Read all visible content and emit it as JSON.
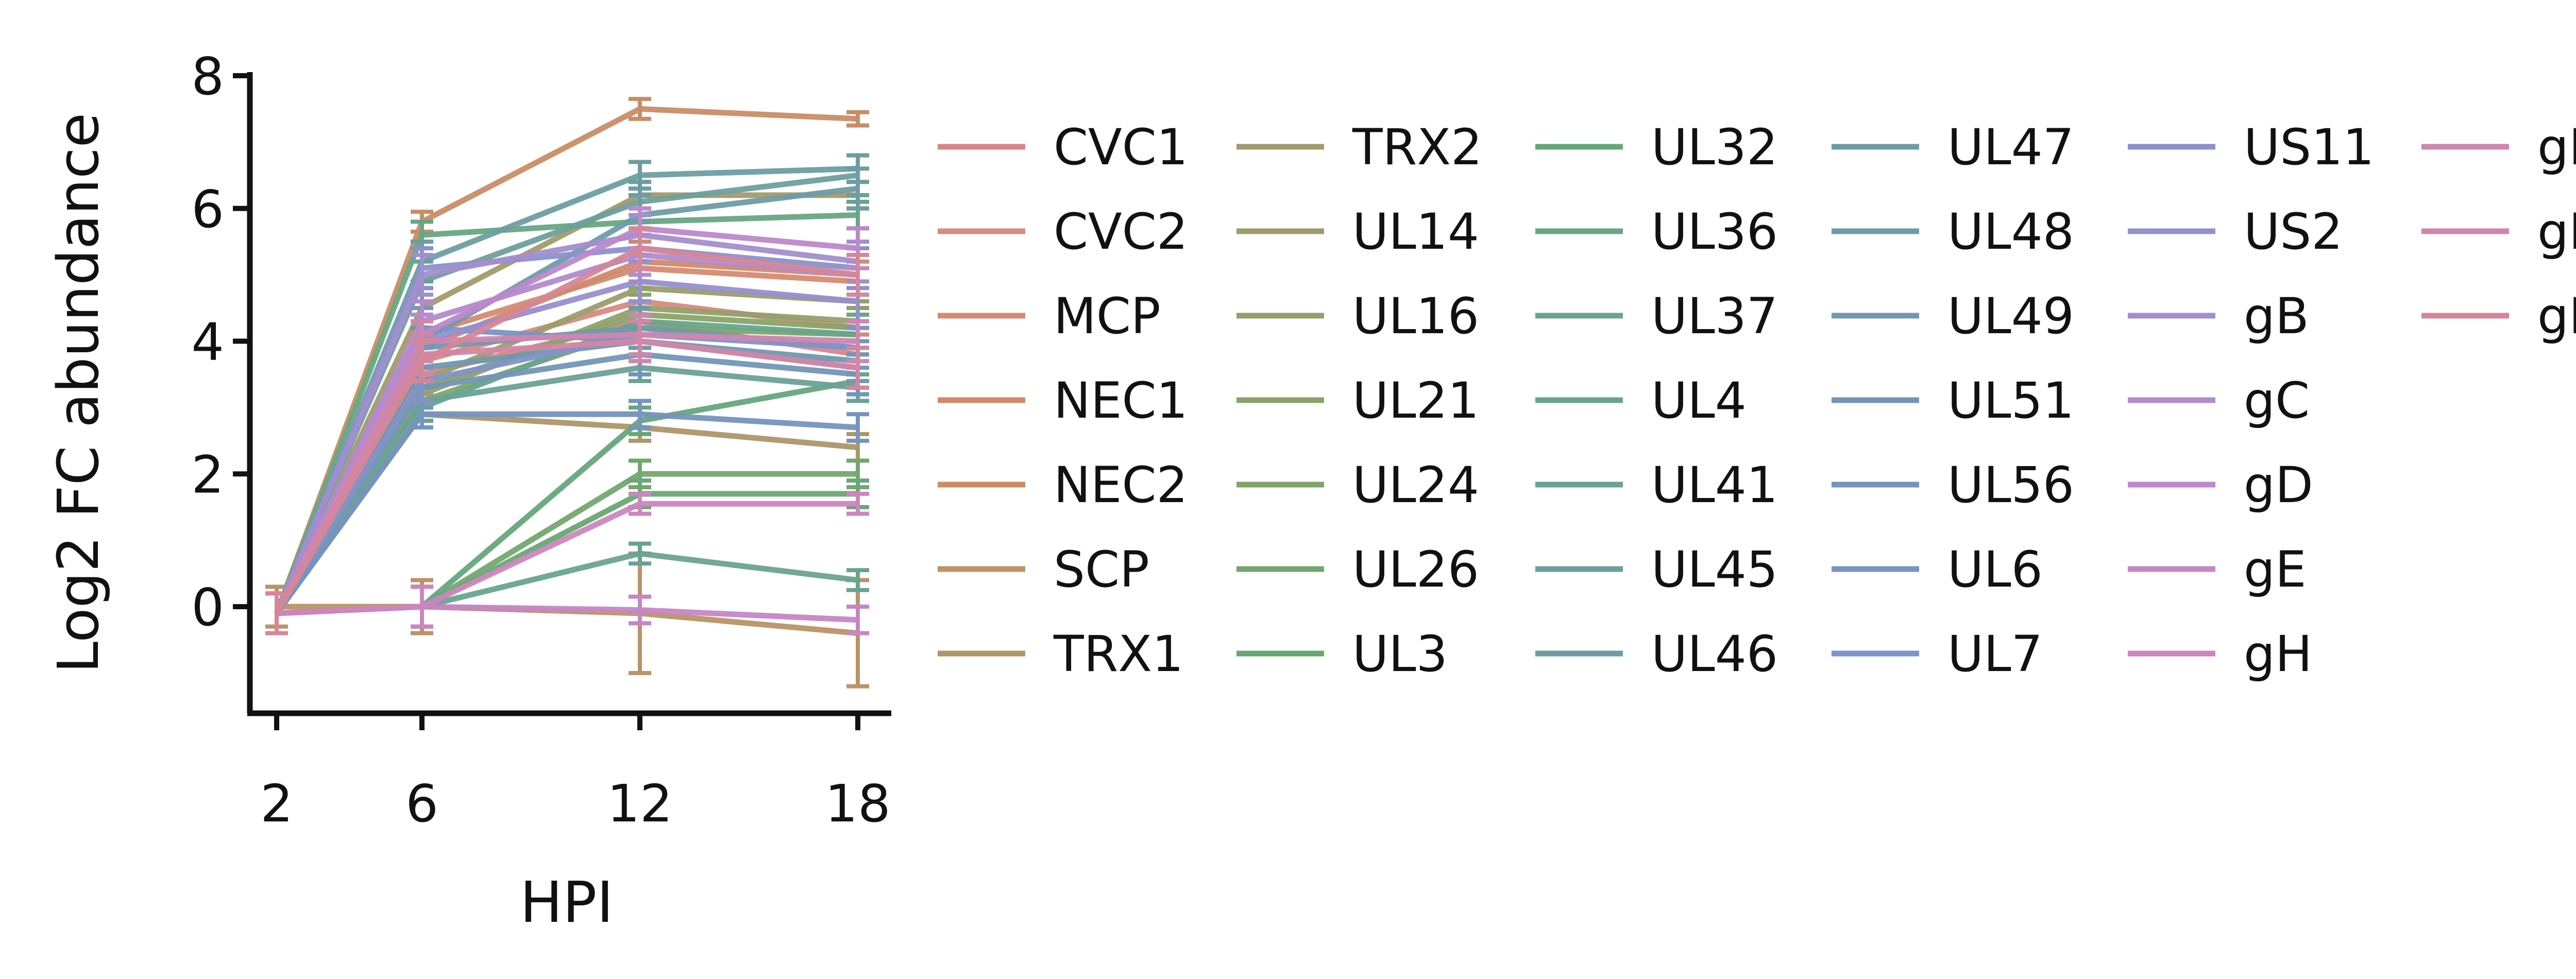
{
  "chart_data": {
    "type": "line",
    "title": "",
    "xlabel": "HPI",
    "ylabel": "Log2 FC abundance",
    "x": [
      2,
      6,
      12,
      18
    ],
    "xticks": [
      2,
      6,
      12,
      18
    ],
    "ylim": [
      -1.6,
      8.1
    ],
    "yticks": [
      0,
      2,
      4,
      6,
      8
    ],
    "grid": false,
    "legend_placement": "right",
    "series": [
      {
        "name": "CVC1",
        "color": "#d98587",
        "values": [
          -0.1,
          3.5,
          4.3,
          3.8
        ],
        "errors": [
          0.3,
          0.3,
          0.3,
          0.3
        ]
      },
      {
        "name": "CVC2",
        "color": "#d78a80",
        "values": [
          -0.1,
          3.7,
          4.6,
          4.2
        ],
        "errors": [
          0.3,
          0.3,
          0.3,
          0.3
        ]
      },
      {
        "name": "MCP",
        "color": "#d58b72",
        "values": [
          -0.1,
          4.1,
          5.1,
          4.9
        ],
        "errors": [
          0.3,
          0.3,
          0.3,
          0.3
        ]
      },
      {
        "name": "NEC1",
        "color": "#d18a6a",
        "values": [
          -0.1,
          3.9,
          5.2,
          5.0
        ],
        "errors": [
          0.3,
          0.3,
          0.3,
          0.3
        ]
      },
      {
        "name": "NEC2",
        "color": "#c98d66",
        "values": [
          -0.1,
          5.8,
          7.5,
          7.35
        ],
        "errors": [
          0.3,
          0.15,
          0.15,
          0.1
        ]
      },
      {
        "name": "SCP",
        "color": "#bb9366",
        "values": [
          0.0,
          0.0,
          -0.1,
          -0.4
        ],
        "errors": [
          0.3,
          0.4,
          0.9,
          0.8
        ]
      },
      {
        "name": "TRX1",
        "color": "#ae9668",
        "values": [
          -0.1,
          2.9,
          2.7,
          2.4
        ],
        "errors": [
          0.3,
          0.2,
          0.2,
          0.2
        ]
      },
      {
        "name": "TRX2",
        "color": "#a39a6b",
        "values": [
          -0.1,
          4.5,
          6.2,
          6.2
        ],
        "errors": [
          0.3,
          0.3,
          0.2,
          0.2
        ]
      },
      {
        "name": "UL14",
        "color": "#9c9d6b",
        "values": [
          -0.1,
          3.4,
          4.8,
          4.6
        ],
        "errors": [
          0.3,
          0.3,
          0.3,
          0.3
        ]
      },
      {
        "name": "UL16",
        "color": "#94a06a",
        "values": [
          -0.1,
          3.2,
          4.5,
          4.3
        ],
        "errors": [
          0.3,
          0.3,
          0.3,
          0.3
        ]
      },
      {
        "name": "UL21",
        "color": "#8aa369",
        "values": [
          -0.1,
          3.3,
          4.4,
          4.2
        ],
        "errors": [
          0.3,
          0.3,
          0.3,
          0.3
        ]
      },
      {
        "name": "UL24",
        "color": "#7fa56b",
        "values": [
          -0.1,
          3.1,
          4.2,
          4.1
        ],
        "errors": [
          0.3,
          0.3,
          0.3,
          0.3
        ]
      },
      {
        "name": "UL26",
        "color": "#74a66f",
        "values": [
          -0.1,
          0.0,
          2.0,
          2.0
        ],
        "errors": [
          0.3,
          0.3,
          0.2,
          0.2
        ]
      },
      {
        "name": "UL3",
        "color": "#69a774",
        "values": [
          -0.1,
          0.0,
          1.7,
          1.7
        ],
        "errors": [
          0.3,
          0.3,
          0.2,
          0.2
        ]
      },
      {
        "name": "UL32",
        "color": "#65a77b",
        "values": [
          -0.1,
          0.0,
          2.8,
          3.4
        ],
        "errors": [
          0.3,
          0.3,
          0.2,
          0.2
        ]
      },
      {
        "name": "UL36",
        "color": "#67a683",
        "values": [
          -0.1,
          5.6,
          5.8,
          5.9
        ],
        "errors": [
          0.3,
          0.2,
          0.2,
          0.2
        ]
      },
      {
        "name": "UL37",
        "color": "#68a58a",
        "values": [
          -0.1,
          3.0,
          4.3,
          4.1
        ],
        "errors": [
          0.3,
          0.3,
          0.3,
          0.3
        ]
      },
      {
        "name": "UL4",
        "color": "#69a390",
        "values": [
          -0.1,
          0.0,
          0.8,
          0.4
        ],
        "errors": [
          0.3,
          0.3,
          0.15,
          0.15
        ]
      },
      {
        "name": "UL41",
        "color": "#6aa296",
        "values": [
          -0.1,
          3.1,
          3.6,
          3.3
        ],
        "errors": [
          0.3,
          0.3,
          0.2,
          0.2
        ]
      },
      {
        "name": "UL45",
        "color": "#6ba09c",
        "values": [
          -0.1,
          4.9,
          6.1,
          6.5
        ],
        "errors": [
          0.3,
          0.3,
          0.3,
          0.3
        ]
      },
      {
        "name": "UL46",
        "color": "#6c9ea1",
        "values": [
          -0.1,
          5.2,
          6.5,
          6.6
        ],
        "errors": [
          0.3,
          0.3,
          0.2,
          0.2
        ]
      },
      {
        "name": "UL47",
        "color": "#6d9ca6",
        "values": [
          -0.1,
          4.0,
          5.9,
          6.3
        ],
        "errors": [
          0.3,
          0.3,
          0.3,
          0.3
        ]
      },
      {
        "name": "UL48",
        "color": "#6e9aab",
        "values": [
          -0.1,
          3.9,
          4.2,
          3.9
        ],
        "errors": [
          0.3,
          0.3,
          0.3,
          0.3
        ]
      },
      {
        "name": "UL49",
        "color": "#7098b1",
        "values": [
          -0.1,
          3.6,
          4.0,
          3.7
        ],
        "errors": [
          0.3,
          0.3,
          0.3,
          0.3
        ]
      },
      {
        "name": "UL51",
        "color": "#7396b7",
        "values": [
          -0.1,
          3.3,
          3.8,
          3.5
        ],
        "errors": [
          0.3,
          0.3,
          0.3,
          0.3
        ]
      },
      {
        "name": "UL56",
        "color": "#7694bd",
        "values": [
          -0.1,
          2.9,
          2.9,
          2.7
        ],
        "errors": [
          0.3,
          0.2,
          0.2,
          0.2
        ]
      },
      {
        "name": "UL6",
        "color": "#7b93c3",
        "values": [
          -0.1,
          4.2,
          4.0,
          3.6
        ],
        "errors": [
          0.3,
          0.3,
          0.3,
          0.3
        ]
      },
      {
        "name": "UL7",
        "color": "#8292c8",
        "values": [
          -0.1,
          3.4,
          4.1,
          3.9
        ],
        "errors": [
          0.3,
          0.3,
          0.3,
          0.3
        ]
      },
      {
        "name": "US11",
        "color": "#8b91cb",
        "values": [
          -0.1,
          5.1,
          5.4,
          5.1
        ],
        "errors": [
          0.3,
          0.3,
          0.3,
          0.3
        ]
      },
      {
        "name": "US2",
        "color": "#9690cd",
        "values": [
          -0.1,
          4.0,
          4.9,
          4.6
        ],
        "errors": [
          0.3,
          0.3,
          0.3,
          0.3
        ]
      },
      {
        "name": "gB",
        "color": "#a38ecf",
        "values": [
          -0.1,
          5.0,
          5.6,
          5.2
        ],
        "errors": [
          0.3,
          0.3,
          0.3,
          0.3
        ]
      },
      {
        "name": "gC",
        "color": "#b18bce",
        "values": [
          -0.1,
          4.3,
          5.3,
          5.0
        ],
        "errors": [
          0.3,
          0.3,
          0.3,
          0.3
        ]
      },
      {
        "name": "gD",
        "color": "#bd88cc",
        "values": [
          -0.1,
          4.1,
          5.7,
          5.4
        ],
        "errors": [
          0.3,
          0.3,
          0.3,
          0.3
        ]
      },
      {
        "name": "gE",
        "color": "#c686c6",
        "values": [
          -0.1,
          0.0,
          -0.05,
          -0.2
        ],
        "errors": [
          0.3,
          0.3,
          0.2,
          0.2
        ]
      },
      {
        "name": "gH",
        "color": "#cc86bd",
        "values": [
          -0.1,
          0.0,
          1.55,
          1.55
        ],
        "errors": [
          0.3,
          0.3,
          0.15,
          0.15
        ]
      },
      {
        "name": "gI",
        "color": "#cf86b1",
        "values": [
          -0.1,
          4.0,
          4.1,
          4.0
        ],
        "errors": [
          0.3,
          0.3,
          0.3,
          0.3
        ]
      },
      {
        "name": "gK",
        "color": "#d286a5",
        "values": [
          -0.1,
          3.8,
          4.0,
          3.6
        ],
        "errors": [
          0.3,
          0.3,
          0.3,
          0.3
        ]
      },
      {
        "name": "gM",
        "color": "#d58798",
        "values": [
          -0.1,
          3.7,
          5.4,
          5.0
        ],
        "errors": [
          0.3,
          0.3,
          0.3,
          0.3
        ]
      }
    ]
  }
}
